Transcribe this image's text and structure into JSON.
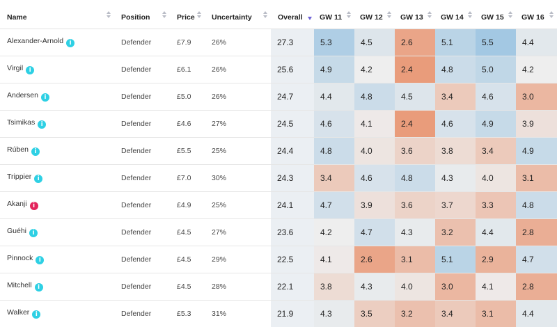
{
  "columns": {
    "name": "Name",
    "position": "Position",
    "price": "Price",
    "uncertainty": "Uncertainty",
    "overall": "Overall",
    "gw": [
      "GW 11",
      "GW 12",
      "GW 13",
      "GW 14",
      "GW 15",
      "GW 16"
    ]
  },
  "icons": {
    "info": "info-icon",
    "sort": "sort-icon",
    "sort_active": "sort-descending-icon"
  },
  "colors": {
    "info_badge": "#2ed0e4",
    "alert_badge": "#e3245c",
    "sort_active": "#6e62d6",
    "overall_bg": "#ebeff3",
    "scale_high": "#a3c8e3",
    "scale_mid": "#eeeeee",
    "scale_low": "#e99c7b"
  },
  "rows": [
    {
      "name": "Alexander-Arnold",
      "badge": "i",
      "badge_type": "info",
      "position": "Defender",
      "price": "£7.9",
      "uncertainty": "26%",
      "overall": "27.3",
      "gw": [
        "5.3",
        "4.5",
        "2.6",
        "5.1",
        "5.5",
        "4.4"
      ]
    },
    {
      "name": "Virgil",
      "badge": "i",
      "badge_type": "info",
      "position": "Defender",
      "price": "£6.1",
      "uncertainty": "26%",
      "overall": "25.6",
      "gw": [
        "4.9",
        "4.2",
        "2.4",
        "4.8",
        "5.0",
        "4.2"
      ]
    },
    {
      "name": "Andersen",
      "badge": "i",
      "badge_type": "info",
      "position": "Defender",
      "price": "£5.0",
      "uncertainty": "26%",
      "overall": "24.7",
      "gw": [
        "4.4",
        "4.8",
        "4.5",
        "3.4",
        "4.6",
        "3.0"
      ]
    },
    {
      "name": "Tsimikas",
      "badge": "i",
      "badge_type": "info",
      "position": "Defender",
      "price": "£4.6",
      "uncertainty": "27%",
      "overall": "24.5",
      "gw": [
        "4.6",
        "4.1",
        "2.4",
        "4.6",
        "4.9",
        "3.9"
      ]
    },
    {
      "name": "Rúben",
      "badge": "i",
      "badge_type": "info",
      "position": "Defender",
      "price": "£5.5",
      "uncertainty": "25%",
      "overall": "24.4",
      "gw": [
        "4.8",
        "4.0",
        "3.6",
        "3.8",
        "3.4",
        "4.9"
      ]
    },
    {
      "name": "Trippier",
      "badge": "i",
      "badge_type": "info",
      "position": "Defender",
      "price": "£7.0",
      "uncertainty": "30%",
      "overall": "24.3",
      "gw": [
        "3.4",
        "4.6",
        "4.8",
        "4.3",
        "4.0",
        "3.1"
      ]
    },
    {
      "name": "Akanji",
      "badge": "i",
      "badge_type": "alert",
      "position": "Defender",
      "price": "£4.9",
      "uncertainty": "25%",
      "overall": "24.1",
      "gw": [
        "4.7",
        "3.9",
        "3.6",
        "3.7",
        "3.3",
        "4.8"
      ]
    },
    {
      "name": "Guéhi",
      "badge": "i",
      "badge_type": "info",
      "position": "Defender",
      "price": "£4.5",
      "uncertainty": "27%",
      "overall": "23.6",
      "gw": [
        "4.2",
        "4.7",
        "4.3",
        "3.2",
        "4.4",
        "2.8"
      ]
    },
    {
      "name": "Pinnock",
      "badge": "i",
      "badge_type": "info",
      "position": "Defender",
      "price": "£4.5",
      "uncertainty": "29%",
      "overall": "22.5",
      "gw": [
        "4.1",
        "2.6",
        "3.1",
        "5.1",
        "2.9",
        "4.7"
      ]
    },
    {
      "name": "Mitchell",
      "badge": "i",
      "badge_type": "info",
      "position": "Defender",
      "price": "£4.5",
      "uncertainty": "28%",
      "overall": "22.1",
      "gw": [
        "3.8",
        "4.3",
        "4.0",
        "3.0",
        "4.1",
        "2.8"
      ]
    },
    {
      "name": "Walker",
      "badge": "i",
      "badge_type": "info",
      "position": "Defender",
      "price": "£5.3",
      "uncertainty": "31%",
      "overall": "21.9",
      "gw": [
        "4.3",
        "3.5",
        "3.2",
        "3.4",
        "3.1",
        "4.4"
      ]
    }
  ]
}
